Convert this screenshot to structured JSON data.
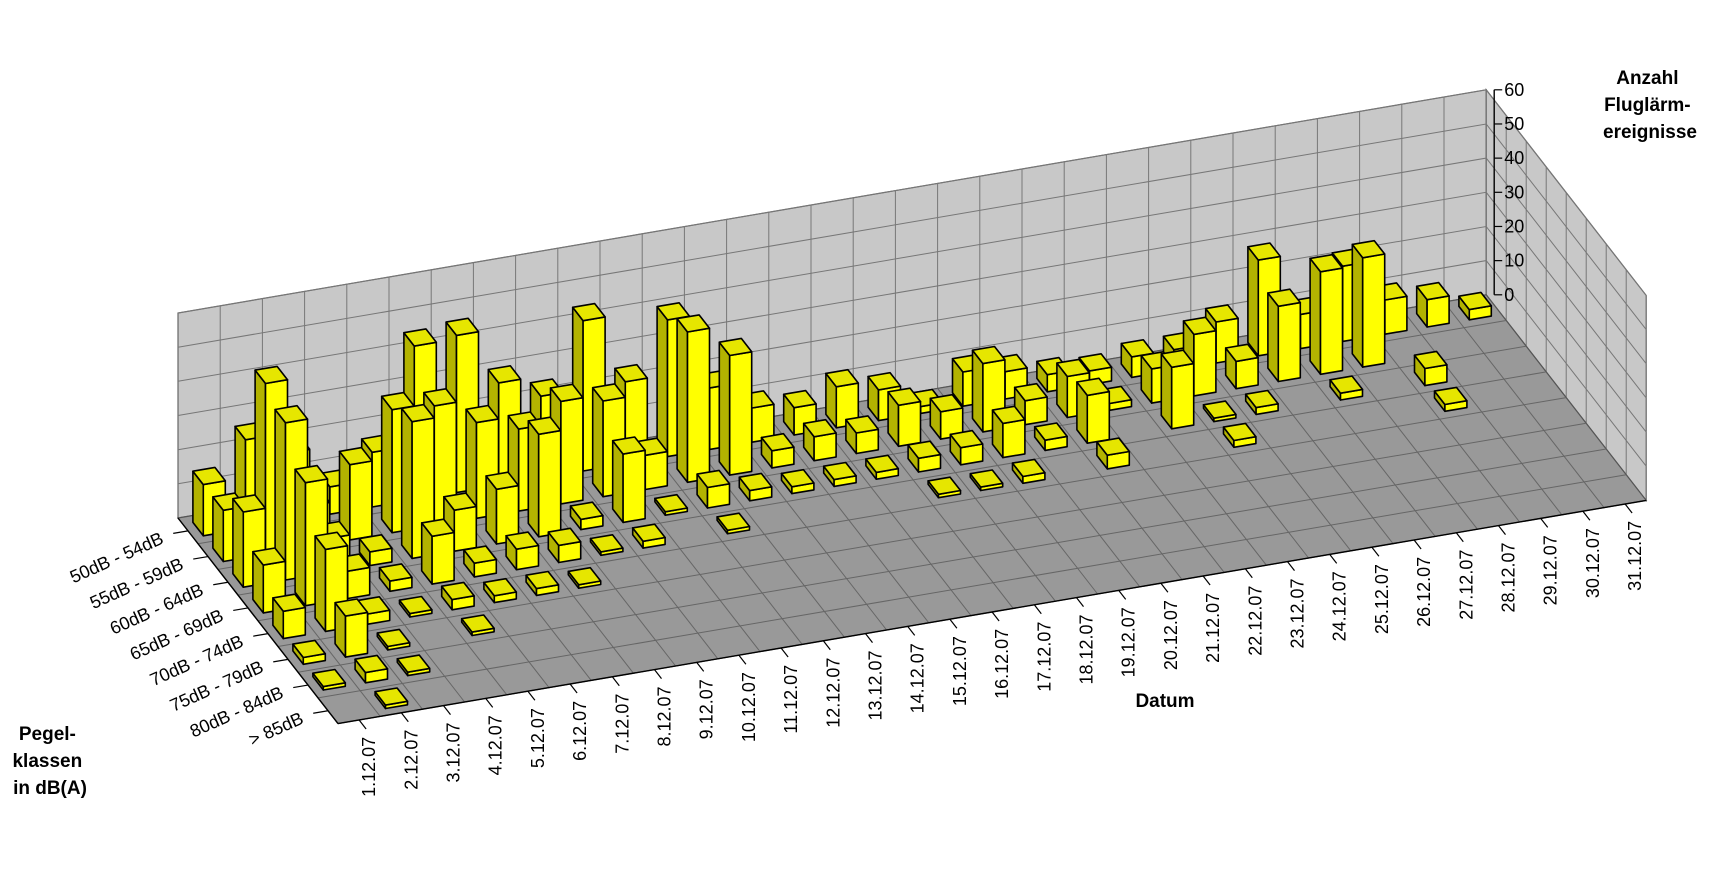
{
  "chart_data": {
    "type": "bar3d",
    "title": "",
    "x_axis_title": "Datum",
    "y_axis_title": [
      "Pegel-",
      "klassen",
      "in dB(A)"
    ],
    "z_axis_title": [
      "Anzahl",
      "Fluglärm-",
      "ereignisse"
    ],
    "dates": [
      "1.12.07",
      "2.12.07",
      "3.12.07",
      "4.12.07",
      "5.12.07",
      "6.12.07",
      "7.12.07",
      "8.12.07",
      "9.12.07",
      "10.12.07",
      "11.12.07",
      "12.12.07",
      "13.12.07",
      "14.12.07",
      "15.12.07",
      "16.12.07",
      "17.12.07",
      "18.12.07",
      "19.12.07",
      "20.12.07",
      "21.12.07",
      "22.12.07",
      "23.12.07",
      "24.12.07",
      "25.12.07",
      "26.12.07",
      "27.12.07",
      "28.12.07",
      "29.12.07",
      "30.12.07",
      "31.12.07"
    ],
    "level_classes": [
      "50dB - 54dB",
      "55dB - 59dB",
      "60dB - 64dB",
      "65dB - 69dB",
      "70dB - 74dB",
      "75dB - 79dB",
      "80dB - 84dB",
      "> 85dB"
    ],
    "z_ticks": [
      0,
      10,
      20,
      30,
      40,
      50,
      60
    ],
    "zlim": [
      0,
      60
    ],
    "bar_color": "#ffff00",
    "floor_color": "#999999",
    "wall_color": "#c8c8c8",
    "values": [
      [
        15,
        15,
        22,
        14,
        8,
        2,
        1,
        0
      ],
      [
        26,
        50,
        46,
        36,
        24,
        12,
        3,
        1
      ],
      [
        20,
        12,
        10,
        8,
        3,
        1,
        1,
        0
      ],
      [
        8,
        22,
        4,
        3,
        1,
        0,
        0,
        0
      ],
      [
        16,
        36,
        40,
        14,
        3,
        1,
        0,
        0
      ],
      [
        45,
        35,
        12,
        4,
        2,
        0,
        0,
        0
      ],
      [
        46,
        28,
        16,
        6,
        2,
        0,
        0,
        0
      ],
      [
        30,
        24,
        30,
        5,
        1,
        0,
        0,
        0
      ],
      [
        24,
        30,
        3,
        1,
        0,
        0,
        0,
        0
      ],
      [
        44,
        28,
        20,
        2,
        0,
        0,
        0,
        0
      ],
      [
        24,
        10,
        1,
        0,
        0,
        0,
        0,
        0
      ],
      [
        40,
        44,
        6,
        1,
        0,
        0,
        0,
        0
      ],
      [
        18,
        35,
        3,
        0,
        0,
        0,
        0,
        0
      ],
      [
        10,
        5,
        2,
        0,
        0,
        0,
        0,
        0
      ],
      [
        8,
        7,
        2,
        0,
        0,
        0,
        0,
        0
      ],
      [
        12,
        6,
        2,
        0,
        0,
        0,
        0,
        0
      ],
      [
        9,
        12,
        4,
        1,
        0,
        0,
        0,
        0
      ],
      [
        2,
        8,
        5,
        1,
        0,
        0,
        0,
        0
      ],
      [
        10,
        20,
        10,
        2,
        0,
        0,
        0,
        0
      ],
      [
        8,
        7,
        3,
        0,
        0,
        0,
        0,
        0
      ],
      [
        5,
        12,
        14,
        4,
        0,
        0,
        0,
        0
      ],
      [
        4,
        2,
        0,
        0,
        0,
        0,
        0,
        0
      ],
      [
        6,
        10,
        18,
        0,
        0,
        0,
        0,
        0
      ],
      [
        6,
        18,
        1,
        2,
        0,
        0,
        0,
        0
      ],
      [
        12,
        8,
        2,
        0,
        0,
        0,
        0,
        0
      ],
      [
        28,
        22,
        0,
        0,
        0,
        0,
        0,
        0
      ],
      [
        10,
        30,
        2,
        0,
        0,
        0,
        0,
        0
      ],
      [
        22,
        32,
        0,
        0,
        0,
        0,
        0,
        0
      ],
      [
        10,
        0,
        5,
        2,
        0,
        0,
        0,
        0
      ],
      [
        8,
        0,
        0,
        0,
        0,
        0,
        0,
        0
      ],
      [
        3,
        0,
        0,
        0,
        0,
        0,
        0,
        0
      ]
    ]
  }
}
